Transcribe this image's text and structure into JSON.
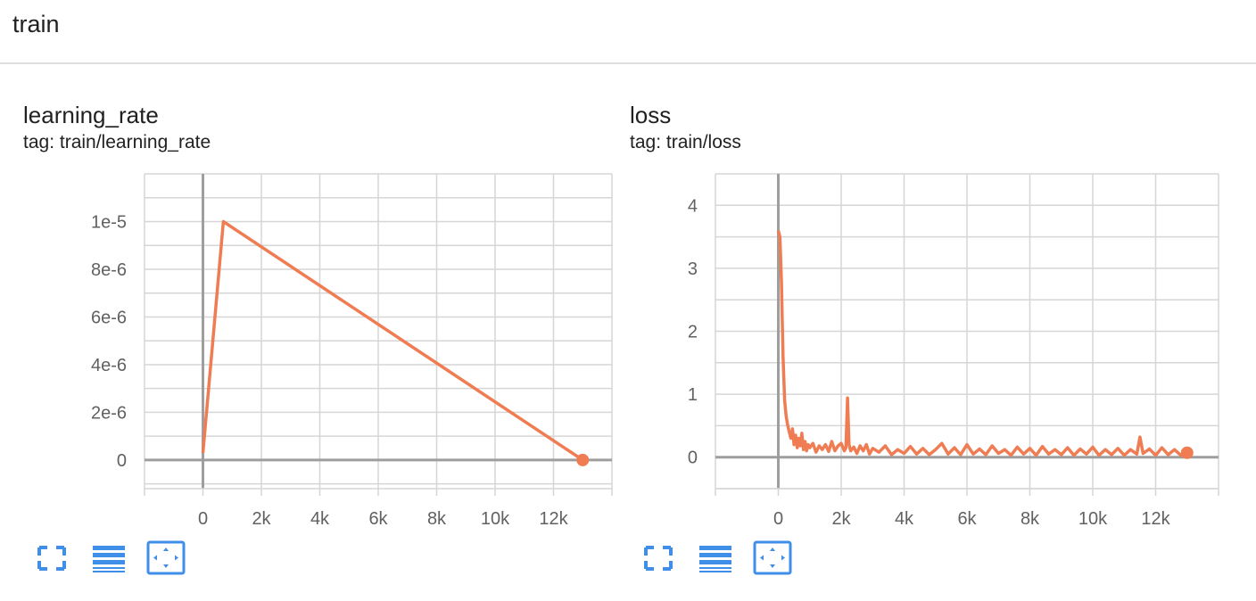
{
  "group": {
    "title": "train"
  },
  "colors": {
    "series": "#ef7c52",
    "grid": "#d6d6d6",
    "axis": "#9e9e9e",
    "tick_text": "#616161",
    "button": "#3f8ee8"
  },
  "buttons": {
    "fullscreen_icon": "fullscreen-icon",
    "log_scale_icon": "log-scale-icon",
    "fit_domain_icon": "fit-domain-icon"
  },
  "chart_data": [
    {
      "type": "line",
      "title": "learning_rate",
      "tag": "tag: train/learning_rate",
      "xlabel": "",
      "ylabel": "",
      "xlim": [
        -2000,
        14000
      ],
      "ylim": [
        -1.2e-06,
        1.2e-05
      ],
      "x_ticks": [
        0,
        2000,
        4000,
        6000,
        8000,
        10000,
        12000
      ],
      "x_tick_labels": [
        "0",
        "2k",
        "4k",
        "6k",
        "8k",
        "10k",
        "12k"
      ],
      "y_ticks": [
        0,
        2e-06,
        4e-06,
        6e-06,
        8e-06,
        1e-05
      ],
      "y_tick_labels": [
        "0",
        "2e-6",
        "4e-6",
        "6e-6",
        "8e-6",
        "1e-5"
      ],
      "grid": true,
      "series": [
        {
          "x": [
            0,
            700,
            13000
          ],
          "y": [
            3e-07,
            1e-05,
            0
          ]
        }
      ]
    },
    {
      "type": "line",
      "title": "loss",
      "tag": "tag: train/loss",
      "xlabel": "",
      "ylabel": "",
      "xlim": [
        -2000,
        14000
      ],
      "ylim": [
        -0.5,
        4.5
      ],
      "x_ticks": [
        0,
        2000,
        4000,
        6000,
        8000,
        10000,
        12000
      ],
      "x_tick_labels": [
        "0",
        "2k",
        "4k",
        "6k",
        "8k",
        "10k",
        "12k"
      ],
      "y_ticks": [
        0,
        1,
        2,
        3,
        4
      ],
      "y_tick_labels": [
        "0",
        "1",
        "2",
        "3",
        "4"
      ],
      "grid": true,
      "series": [
        {
          "x": [
            0,
            50,
            100,
            150,
            200,
            250,
            300,
            350,
            400,
            450,
            500,
            550,
            600,
            650,
            700,
            750,
            800,
            850,
            900,
            950,
            1000,
            1100,
            1200,
            1300,
            1400,
            1500,
            1600,
            1700,
            1800,
            1900,
            2000,
            2100,
            2150,
            2200,
            2250,
            2300,
            2400,
            2500,
            2600,
            2700,
            2800,
            2900,
            3000,
            3200,
            3400,
            3600,
            3800,
            4000,
            4200,
            4400,
            4600,
            4800,
            5000,
            5200,
            5400,
            5600,
            5800,
            6000,
            6200,
            6400,
            6600,
            6800,
            7000,
            7200,
            7400,
            7600,
            7800,
            8000,
            8200,
            8400,
            8600,
            8800,
            9000,
            9200,
            9400,
            9600,
            9800,
            10000,
            10200,
            10400,
            10600,
            10800,
            11000,
            11200,
            11400,
            11500,
            11600,
            11800,
            12000,
            12200,
            12400,
            12600,
            12800,
            13000
          ],
          "y": [
            3.6,
            3.5,
            2.8,
            1.6,
            0.9,
            0.65,
            0.5,
            0.4,
            0.3,
            0.45,
            0.2,
            0.35,
            0.15,
            0.3,
            0.18,
            0.38,
            0.12,
            0.25,
            0.1,
            0.2,
            0.15,
            0.22,
            0.08,
            0.18,
            0.12,
            0.2,
            0.09,
            0.25,
            0.1,
            0.18,
            0.22,
            0.1,
            0.15,
            0.94,
            0.2,
            0.1,
            0.16,
            0.06,
            0.18,
            0.1,
            0.2,
            0.05,
            0.14,
            0.08,
            0.18,
            0.04,
            0.12,
            0.06,
            0.17,
            0.05,
            0.14,
            0.04,
            0.12,
            0.22,
            0.05,
            0.15,
            0.04,
            0.2,
            0.05,
            0.13,
            0.04,
            0.18,
            0.06,
            0.12,
            0.03,
            0.16,
            0.05,
            0.14,
            0.03,
            0.17,
            0.05,
            0.12,
            0.04,
            0.15,
            0.03,
            0.13,
            0.05,
            0.16,
            0.03,
            0.12,
            0.04,
            0.14,
            0.03,
            0.12,
            0.05,
            0.32,
            0.06,
            0.13,
            0.03,
            0.15,
            0.04,
            0.12,
            0.03,
            0.07
          ]
        }
      ]
    }
  ]
}
